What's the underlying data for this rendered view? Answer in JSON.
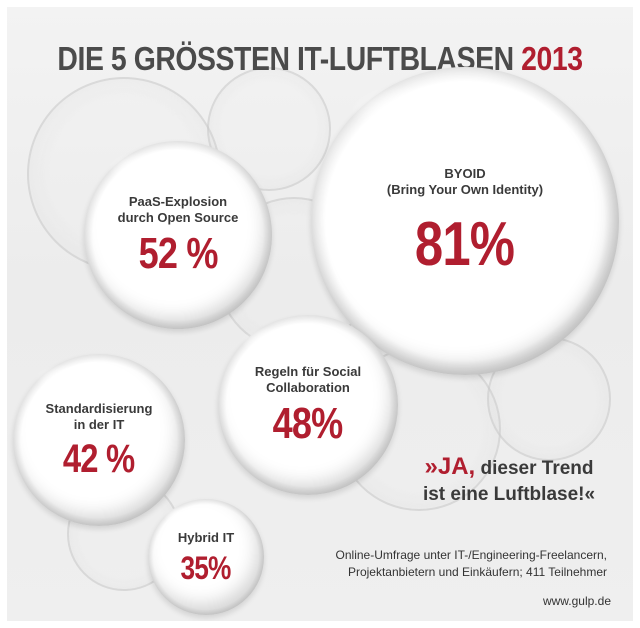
{
  "title": {
    "main": "DIE 5 GRÖSSTEN IT-LUFTBLASEN",
    "year": "2013"
  },
  "chart_data": {
    "type": "bubble",
    "unit": "%",
    "items": [
      {
        "label": "BYOID\n(Bring Your Own Identity)",
        "value": 81,
        "value_text": "81%"
      },
      {
        "label": "PaaS-Explosion\ndurch Open Source",
        "value": 52,
        "value_text": "52 %"
      },
      {
        "label": "Regeln für Social\nCollaboration",
        "value": 48,
        "value_text": "48%"
      },
      {
        "label": "Standardisierung\nin der IT",
        "value": 42,
        "value_text": "42 %"
      },
      {
        "label": "Hybrid IT",
        "value": 35,
        "value_text": "35%"
      }
    ]
  },
  "quote": {
    "open": "»",
    "ja": "JA,",
    "rest1": " dieser Trend",
    "line2": "ist eine Luftblase!«"
  },
  "note": "Online-Umfrage unter IT-/Engineering-Freelancern,\nProjektanbietern und Einkäufern; 411 Teilnehmer",
  "url": "www.gulp.de",
  "colors": {
    "accent": "#b01e2f",
    "text": "#3a3a3a",
    "background": "#efefef"
  }
}
